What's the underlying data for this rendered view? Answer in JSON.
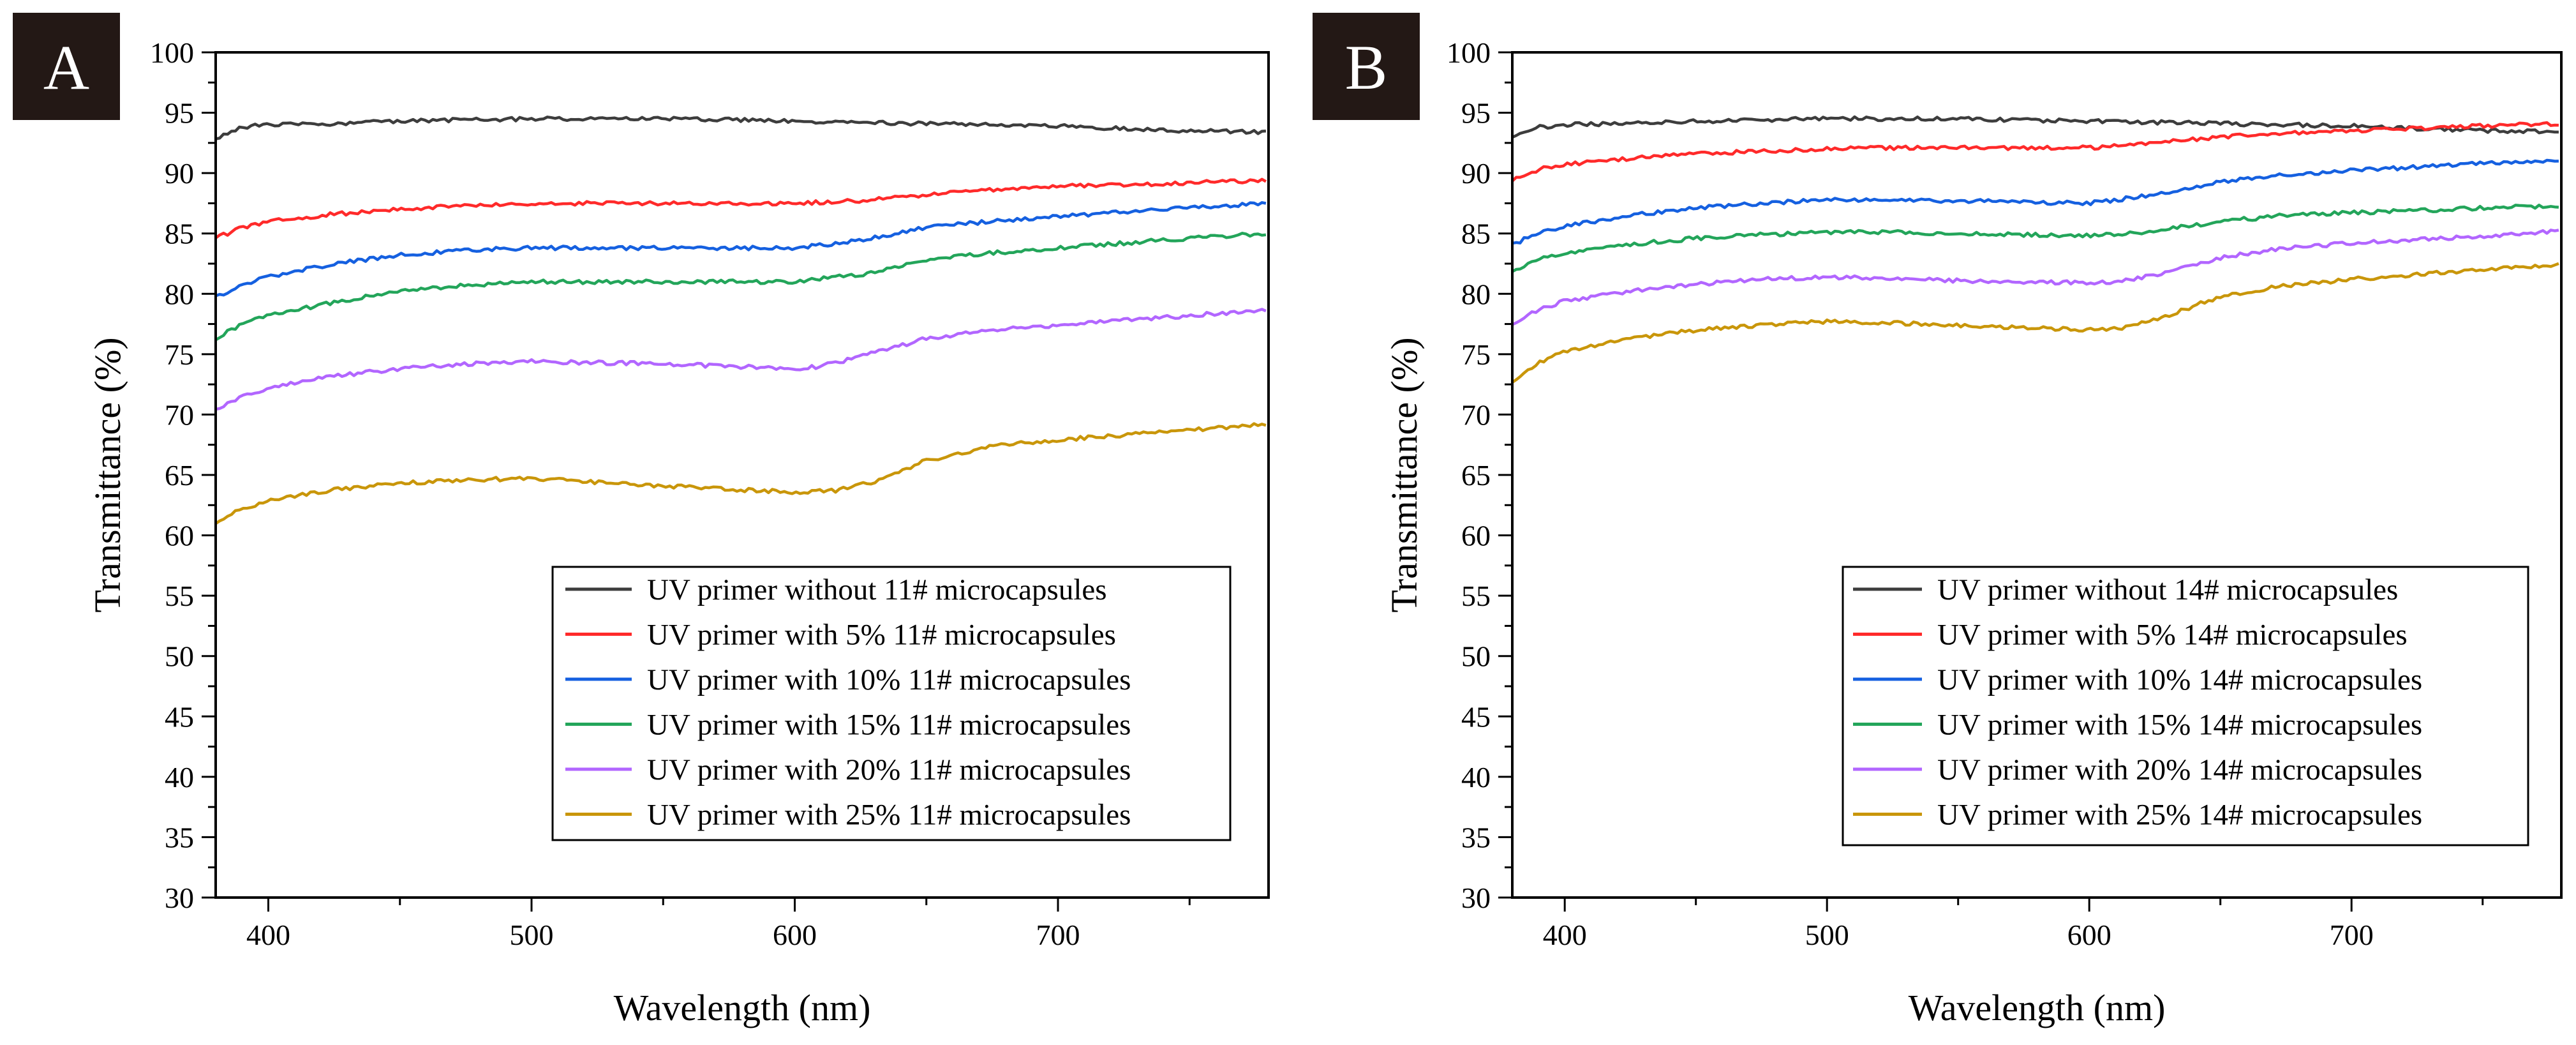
{
  "chart_data": [
    {
      "type": "line",
      "panel_label": "A",
      "xlabel": "Wavelength (nm)",
      "ylabel": "Transmittance (%)",
      "xlim": [
        380,
        780
      ],
      "ylim": [
        30,
        100
      ],
      "xticks": [
        400,
        500,
        600,
        700
      ],
      "xtick_labels": [
        "400",
        "500",
        "600",
        "700"
      ],
      "yticks": [
        30,
        35,
        40,
        45,
        50,
        55,
        60,
        65,
        70,
        75,
        80,
        85,
        90,
        95,
        100
      ],
      "ytick_labels": [
        "30",
        "35",
        "40",
        "45",
        "50",
        "55",
        "60",
        "65",
        "70",
        "75",
        "80",
        "85",
        "90",
        "95",
        "100"
      ],
      "legend_position": "lower-right",
      "series": [
        {
          "name": "UV primer without 11# microcapsules",
          "color": "#3d3d3d",
          "x": [
            380,
            390,
            400,
            425,
            450,
            475,
            500,
            525,
            550,
            575,
            600,
            625,
            650,
            675,
            700,
            725,
            750,
            780
          ],
          "y": [
            92.8,
            93.8,
            94.0,
            94.1,
            94.3,
            94.4,
            94.5,
            94.5,
            94.5,
            94.4,
            94.3,
            94.2,
            94.1,
            94.0,
            93.9,
            93.7,
            93.5,
            93.4
          ]
        },
        {
          "name": "UV primer with 5% 11# microcapsules",
          "color": "#ff2a2a",
          "x": [
            380,
            390,
            400,
            425,
            450,
            475,
            500,
            525,
            550,
            575,
            600,
            625,
            650,
            675,
            700,
            725,
            750,
            780
          ],
          "y": [
            84.6,
            85.5,
            86.0,
            86.6,
            87.0,
            87.3,
            87.5,
            87.5,
            87.5,
            87.5,
            87.5,
            87.7,
            88.2,
            88.6,
            88.9,
            89.0,
            89.2,
            89.4
          ]
        },
        {
          "name": "UV primer with 10% 11# microcapsules",
          "color": "#1560e0",
          "x": [
            380,
            390,
            400,
            425,
            450,
            475,
            500,
            525,
            550,
            575,
            600,
            625,
            650,
            675,
            700,
            725,
            750,
            780
          ],
          "y": [
            79.7,
            80.7,
            81.4,
            82.5,
            83.2,
            83.6,
            83.8,
            83.8,
            83.8,
            83.8,
            83.8,
            84.4,
            85.5,
            86.0,
            86.4,
            86.8,
            87.1,
            87.5
          ]
        },
        {
          "name": "UV primer with 15% 11# microcapsules",
          "color": "#23a55a",
          "x": [
            380,
            390,
            400,
            425,
            450,
            475,
            500,
            525,
            550,
            575,
            600,
            625,
            650,
            675,
            700,
            725,
            750,
            780
          ],
          "y": [
            76.3,
            77.5,
            78.2,
            79.3,
            80.2,
            80.7,
            81.0,
            81.0,
            81.0,
            81.0,
            81.0,
            81.6,
            82.8,
            83.4,
            83.8,
            84.2,
            84.6,
            85.0
          ]
        },
        {
          "name": "UV primer with 20% 11# microcapsules",
          "color": "#b266ff",
          "x": [
            380,
            390,
            400,
            425,
            450,
            475,
            500,
            525,
            550,
            575,
            600,
            610,
            625,
            650,
            675,
            700,
            725,
            750,
            780
          ],
          "y": [
            70.3,
            71.5,
            72.2,
            73.2,
            73.8,
            74.2,
            74.4,
            74.3,
            74.2,
            74.0,
            73.8,
            74.0,
            74.8,
            76.3,
            77.0,
            77.4,
            77.8,
            78.2,
            78.7
          ]
        },
        {
          "name": "UV primer with 25% 11# microcapsules",
          "color": "#c9960a",
          "x": [
            380,
            390,
            400,
            425,
            450,
            475,
            500,
            525,
            550,
            575,
            600,
            615,
            630,
            650,
            675,
            700,
            725,
            750,
            780
          ],
          "y": [
            61.0,
            62.2,
            62.9,
            63.8,
            64.3,
            64.6,
            64.7,
            64.4,
            64.1,
            63.8,
            63.6,
            63.7,
            64.4,
            66.2,
            67.4,
            67.9,
            68.3,
            68.7,
            69.2
          ]
        }
      ]
    },
    {
      "type": "line",
      "panel_label": "B",
      "xlabel": "Wavelength (nm)",
      "ylabel": "Transmittance (%)",
      "xlim": [
        380,
        780
      ],
      "ylim": [
        30,
        100
      ],
      "xticks": [
        400,
        500,
        600,
        700
      ],
      "xtick_labels": [
        "400",
        "500",
        "600",
        "700"
      ],
      "yticks": [
        30,
        35,
        40,
        45,
        50,
        55,
        60,
        65,
        70,
        75,
        80,
        85,
        90,
        95,
        100
      ],
      "ytick_labels": [
        "30",
        "35",
        "40",
        "45",
        "50",
        "55",
        "60",
        "65",
        "70",
        "75",
        "80",
        "85",
        "90",
        "95",
        "100"
      ],
      "legend_position": "lower-right",
      "series": [
        {
          "name": "UV primer without 14# microcapsules",
          "color": "#3d3d3d",
          "x": [
            380,
            390,
            400,
            425,
            450,
            475,
            500,
            525,
            550,
            575,
            600,
            625,
            650,
            675,
            700,
            725,
            750,
            780
          ],
          "y": [
            92.9,
            93.8,
            94.0,
            94.1,
            94.3,
            94.4,
            94.5,
            94.5,
            94.5,
            94.4,
            94.3,
            94.2,
            94.1,
            94.0,
            93.9,
            93.7,
            93.5,
            93.4
          ]
        },
        {
          "name": "UV primer with 5% 14# microcapsules",
          "color": "#ff2a2a",
          "x": [
            380,
            390,
            400,
            425,
            450,
            475,
            500,
            525,
            550,
            575,
            600,
            625,
            650,
            675,
            700,
            725,
            750,
            780
          ],
          "y": [
            89.4,
            90.3,
            90.7,
            91.2,
            91.6,
            91.8,
            92.0,
            92.1,
            92.1,
            92.1,
            92.1,
            92.5,
            93.0,
            93.3,
            93.5,
            93.7,
            93.9,
            94.1
          ]
        },
        {
          "name": "UV primer with 10% 14# microcapsules",
          "color": "#1560e0",
          "x": [
            380,
            390,
            400,
            425,
            450,
            475,
            500,
            525,
            550,
            575,
            600,
            625,
            650,
            675,
            700,
            725,
            750,
            780
          ],
          "y": [
            84.1,
            85.0,
            85.6,
            86.5,
            87.1,
            87.5,
            87.8,
            87.8,
            87.7,
            87.6,
            87.5,
            88.2,
            89.3,
            89.9,
            90.2,
            90.5,
            90.8,
            91.1
          ]
        },
        {
          "name": "UV primer with 15% 14# microcapsules",
          "color": "#23a55a",
          "x": [
            380,
            390,
            400,
            425,
            450,
            475,
            500,
            525,
            550,
            575,
            600,
            625,
            650,
            675,
            700,
            725,
            750,
            780
          ],
          "y": [
            81.9,
            82.8,
            83.4,
            84.1,
            84.6,
            84.9,
            85.1,
            85.1,
            85.0,
            84.9,
            84.8,
            85.2,
            86.0,
            86.5,
            86.7,
            86.9,
            87.1,
            87.3
          ]
        },
        {
          "name": "UV primer with 20% 14# microcapsules",
          "color": "#b266ff",
          "x": [
            380,
            390,
            400,
            425,
            450,
            475,
            500,
            525,
            550,
            575,
            600,
            615,
            630,
            650,
            675,
            700,
            725,
            750,
            780
          ],
          "y": [
            77.4,
            78.7,
            79.4,
            80.2,
            80.8,
            81.2,
            81.4,
            81.3,
            81.1,
            81.0,
            80.9,
            81.1,
            81.8,
            83.0,
            83.8,
            84.2,
            84.5,
            84.8,
            85.2
          ]
        },
        {
          "name": "UV primer with 25% 14# microcapsules",
          "color": "#c9960a",
          "x": [
            380,
            390,
            400,
            425,
            450,
            475,
            500,
            525,
            550,
            575,
            600,
            615,
            630,
            650,
            675,
            700,
            725,
            750,
            780
          ],
          "y": [
            72.6,
            74.3,
            75.2,
            76.3,
            77.0,
            77.4,
            77.7,
            77.6,
            77.4,
            77.2,
            77.0,
            77.2,
            78.2,
            79.8,
            80.7,
            81.2,
            81.6,
            82.0,
            82.4
          ]
        }
      ]
    }
  ]
}
